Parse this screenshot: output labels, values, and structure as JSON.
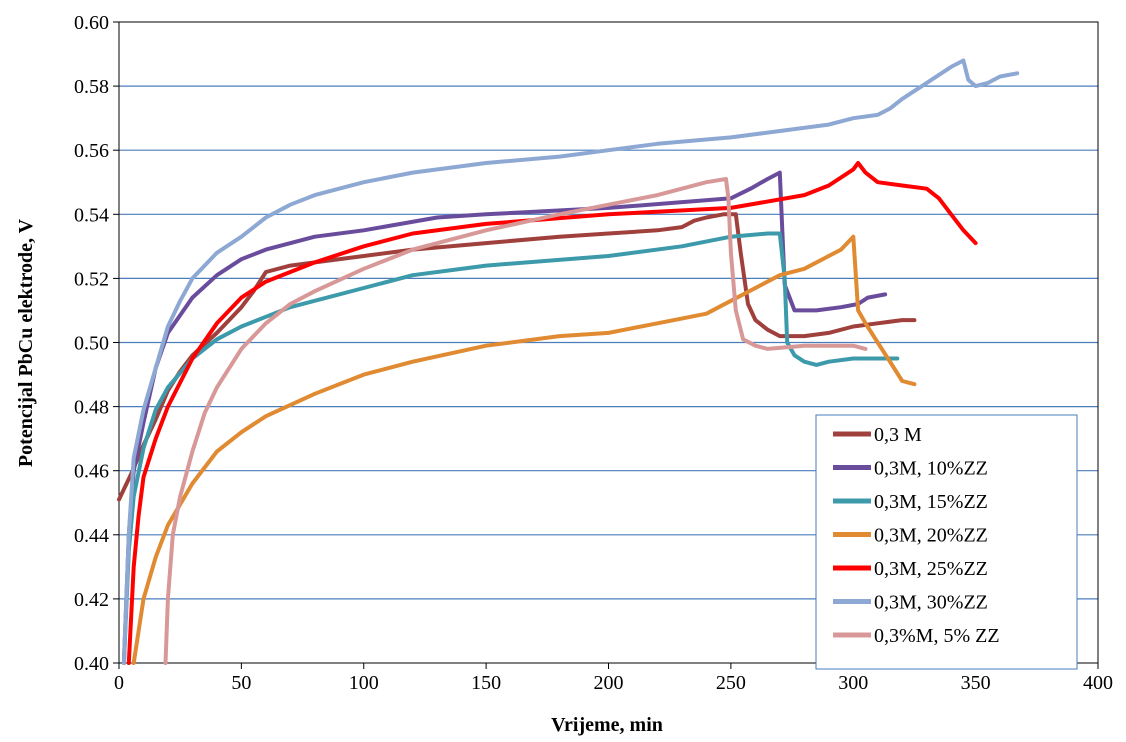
{
  "chart_data": {
    "type": "line",
    "title": "",
    "xlabel": "Vrijeme, min",
    "ylabel": "Potencijal PbCu elektrode, V",
    "xlim": [
      0,
      400
    ],
    "ylim": [
      0.4,
      0.6
    ],
    "x_ticks": [
      "0",
      "50",
      "100",
      "150",
      "200",
      "250",
      "300",
      "350",
      "400"
    ],
    "y_ticks": [
      "0.40",
      "0.42",
      "0.44",
      "0.46",
      "0.48",
      "0.50",
      "0.52",
      "0.54",
      "0.56",
      "0.58",
      "0.60"
    ],
    "grid": "horizontal",
    "legend_position": "bottom-right",
    "series": [
      {
        "name": "0,3 M",
        "color": "#A0403C",
        "points": [
          [
            0,
            0.451
          ],
          [
            5,
            0.459
          ],
          [
            10,
            0.468
          ],
          [
            15,
            0.476
          ],
          [
            20,
            0.485
          ],
          [
            25,
            0.491
          ],
          [
            30,
            0.496
          ],
          [
            40,
            0.503
          ],
          [
            50,
            0.511
          ],
          [
            55,
            0.516
          ],
          [
            60,
            0.522
          ],
          [
            70,
            0.524
          ],
          [
            80,
            0.525
          ],
          [
            100,
            0.527
          ],
          [
            120,
            0.529
          ],
          [
            150,
            0.531
          ],
          [
            180,
            0.533
          ],
          [
            200,
            0.534
          ],
          [
            220,
            0.535
          ],
          [
            230,
            0.536
          ],
          [
            235,
            0.538
          ],
          [
            240,
            0.539
          ],
          [
            247,
            0.54
          ],
          [
            252,
            0.54
          ],
          [
            254,
            0.528
          ],
          [
            257,
            0.512
          ],
          [
            260,
            0.507
          ],
          [
            265,
            0.504
          ],
          [
            270,
            0.502
          ],
          [
            280,
            0.502
          ],
          [
            290,
            0.503
          ],
          [
            300,
            0.505
          ],
          [
            310,
            0.506
          ],
          [
            320,
            0.507
          ],
          [
            325,
            0.507
          ]
        ]
      },
      {
        "name": "0,3M, 10%ZZ",
        "color": "#6A4C9C",
        "points": [
          [
            2,
            0.4
          ],
          [
            4,
            0.44
          ],
          [
            6,
            0.46
          ],
          [
            10,
            0.475
          ],
          [
            15,
            0.492
          ],
          [
            20,
            0.503
          ],
          [
            30,
            0.514
          ],
          [
            40,
            0.521
          ],
          [
            50,
            0.526
          ],
          [
            60,
            0.529
          ],
          [
            80,
            0.533
          ],
          [
            100,
            0.535
          ],
          [
            130,
            0.539
          ],
          [
            150,
            0.54
          ],
          [
            200,
            0.542
          ],
          [
            250,
            0.545
          ],
          [
            258,
            0.548
          ],
          [
            265,
            0.551
          ],
          [
            270,
            0.553
          ],
          [
            271,
            0.535
          ],
          [
            272,
            0.518
          ],
          [
            274,
            0.514
          ],
          [
            276,
            0.51
          ],
          [
            285,
            0.51
          ],
          [
            295,
            0.511
          ],
          [
            302,
            0.512
          ],
          [
            306,
            0.514
          ],
          [
            313,
            0.515
          ]
        ]
      },
      {
        "name": "0,3M, 15%ZZ",
        "color": "#3C9AAA",
        "points": [
          [
            2,
            0.4
          ],
          [
            4,
            0.435
          ],
          [
            6,
            0.452
          ],
          [
            10,
            0.467
          ],
          [
            15,
            0.479
          ],
          [
            20,
            0.486
          ],
          [
            30,
            0.495
          ],
          [
            40,
            0.501
          ],
          [
            50,
            0.505
          ],
          [
            70,
            0.511
          ],
          [
            100,
            0.517
          ],
          [
            120,
            0.521
          ],
          [
            150,
            0.524
          ],
          [
            200,
            0.527
          ],
          [
            230,
            0.53
          ],
          [
            250,
            0.533
          ],
          [
            265,
            0.534
          ],
          [
            270,
            0.534
          ],
          [
            272,
            0.52
          ],
          [
            273,
            0.5
          ],
          [
            276,
            0.496
          ],
          [
            280,
            0.494
          ],
          [
            285,
            0.493
          ],
          [
            290,
            0.494
          ],
          [
            300,
            0.495
          ],
          [
            305,
            0.495
          ],
          [
            310,
            0.495
          ],
          [
            318,
            0.495
          ]
        ]
      },
      {
        "name": "0,3M, 20%ZZ",
        "color": "#E08A32",
        "points": [
          [
            6,
            0.4
          ],
          [
            8,
            0.41
          ],
          [
            10,
            0.42
          ],
          [
            15,
            0.433
          ],
          [
            20,
            0.443
          ],
          [
            30,
            0.456
          ],
          [
            40,
            0.466
          ],
          [
            50,
            0.472
          ],
          [
            60,
            0.477
          ],
          [
            80,
            0.484
          ],
          [
            100,
            0.49
          ],
          [
            120,
            0.494
          ],
          [
            150,
            0.499
          ],
          [
            180,
            0.502
          ],
          [
            200,
            0.503
          ],
          [
            220,
            0.506
          ],
          [
            240,
            0.509
          ],
          [
            250,
            0.513
          ],
          [
            260,
            0.517
          ],
          [
            270,
            0.521
          ],
          [
            280,
            0.523
          ],
          [
            290,
            0.527
          ],
          [
            295,
            0.529
          ],
          [
            300,
            0.533
          ],
          [
            302,
            0.51
          ],
          [
            305,
            0.506
          ],
          [
            310,
            0.5
          ],
          [
            315,
            0.494
          ],
          [
            320,
            0.488
          ],
          [
            325,
            0.487
          ]
        ]
      },
      {
        "name": "0,3M, 25%ZZ",
        "color": "#FF0000",
        "points": [
          [
            4,
            0.4
          ],
          [
            6,
            0.43
          ],
          [
            8,
            0.446
          ],
          [
            10,
            0.458
          ],
          [
            15,
            0.47
          ],
          [
            20,
            0.48
          ],
          [
            30,
            0.495
          ],
          [
            40,
            0.506
          ],
          [
            50,
            0.514
          ],
          [
            60,
            0.519
          ],
          [
            70,
            0.522
          ],
          [
            80,
            0.525
          ],
          [
            100,
            0.53
          ],
          [
            120,
            0.534
          ],
          [
            150,
            0.537
          ],
          [
            200,
            0.54
          ],
          [
            250,
            0.542
          ],
          [
            280,
            0.546
          ],
          [
            290,
            0.549
          ],
          [
            300,
            0.554
          ],
          [
            302,
            0.556
          ],
          [
            305,
            0.553
          ],
          [
            310,
            0.55
          ],
          [
            320,
            0.549
          ],
          [
            330,
            0.548
          ],
          [
            335,
            0.545
          ],
          [
            340,
            0.54
          ],
          [
            345,
            0.535
          ],
          [
            350,
            0.531
          ]
        ]
      },
      {
        "name": "0,3M, 30%ZZ",
        "color": "#8EA8D4",
        "points": [
          [
            2,
            0.4
          ],
          [
            4,
            0.44
          ],
          [
            6,
            0.464
          ],
          [
            10,
            0.479
          ],
          [
            15,
            0.492
          ],
          [
            20,
            0.505
          ],
          [
            25,
            0.513
          ],
          [
            30,
            0.52
          ],
          [
            40,
            0.528
          ],
          [
            50,
            0.533
          ],
          [
            60,
            0.539
          ],
          [
            70,
            0.543
          ],
          [
            80,
            0.546
          ],
          [
            100,
            0.55
          ],
          [
            120,
            0.553
          ],
          [
            150,
            0.556
          ],
          [
            180,
            0.558
          ],
          [
            200,
            0.56
          ],
          [
            220,
            0.562
          ],
          [
            250,
            0.564
          ],
          [
            270,
            0.566
          ],
          [
            290,
            0.568
          ],
          [
            300,
            0.57
          ],
          [
            310,
            0.571
          ],
          [
            315,
            0.573
          ],
          [
            320,
            0.576
          ],
          [
            330,
            0.581
          ],
          [
            340,
            0.586
          ],
          [
            345,
            0.588
          ],
          [
            347,
            0.582
          ],
          [
            350,
            0.58
          ],
          [
            355,
            0.581
          ],
          [
            360,
            0.583
          ],
          [
            367,
            0.584
          ]
        ]
      },
      {
        "name": "0,3%M, 5% ZZ",
        "color": "#D89898",
        "points": [
          [
            19,
            0.4
          ],
          [
            20,
            0.42
          ],
          [
            22,
            0.44
          ],
          [
            25,
            0.452
          ],
          [
            30,
            0.466
          ],
          [
            35,
            0.478
          ],
          [
            40,
            0.486
          ],
          [
            50,
            0.498
          ],
          [
            60,
            0.506
          ],
          [
            70,
            0.512
          ],
          [
            80,
            0.516
          ],
          [
            100,
            0.523
          ],
          [
            120,
            0.529
          ],
          [
            150,
            0.535
          ],
          [
            180,
            0.54
          ],
          [
            200,
            0.543
          ],
          [
            220,
            0.546
          ],
          [
            240,
            0.55
          ],
          [
            248,
            0.551
          ],
          [
            249,
            0.545
          ],
          [
            250,
            0.528
          ],
          [
            252,
            0.51
          ],
          [
            255,
            0.501
          ],
          [
            260,
            0.499
          ],
          [
            265,
            0.498
          ],
          [
            280,
            0.499
          ],
          [
            300,
            0.499
          ],
          [
            305,
            0.498
          ]
        ]
      }
    ]
  }
}
